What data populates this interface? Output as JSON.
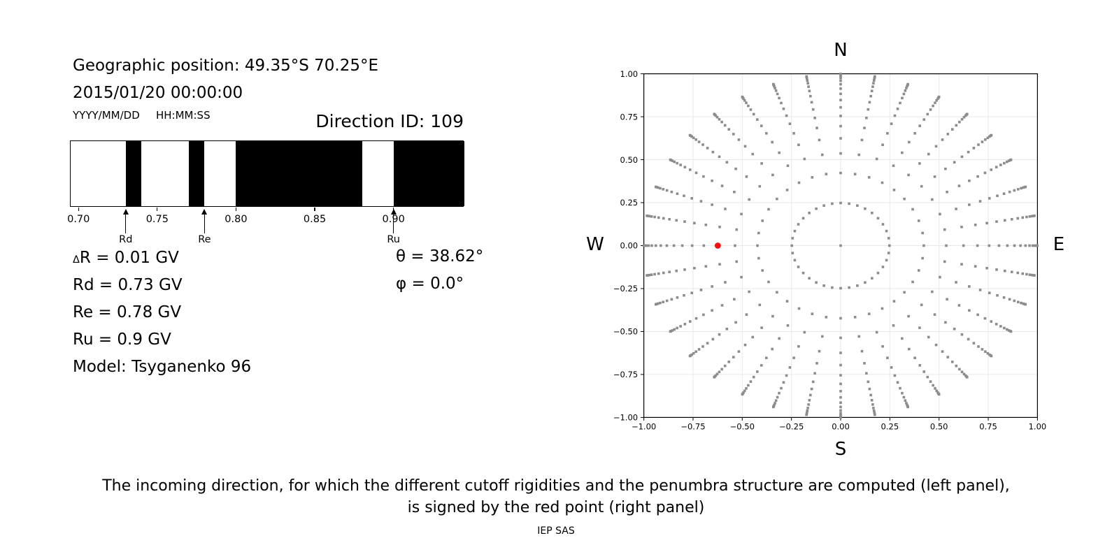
{
  "header": {
    "geo_position": "Geographic position: 49.35°S 70.25°E",
    "datetime": "2015/01/20 00:00:00",
    "date_format": "YYYY/MM/DD",
    "time_format": "HH:MM:SS",
    "direction_id": "Direction ID: 109"
  },
  "info": {
    "delta_symbol": "Δ",
    "delta_r": "R = 0.01 GV",
    "rd": "Rd = 0.73 GV",
    "re": "Re = 0.78 GV",
    "ru": "Ru = 0.9 GV",
    "model": "Model: Tsyganenko 96",
    "theta": "θ = 38.62°",
    "phi": "φ = 0.0°"
  },
  "caption": {
    "line1": "The incoming direction, for which the different cutoff rigidities and the penumbra structure are computed (left panel),",
    "line2": "is signed by the red point (right panel)",
    "credit": "IEP SAS"
  },
  "chart_data": [
    {
      "type": "bar",
      "subtype": "penumbra-band-chart",
      "title": "",
      "x_range": [
        0.695,
        0.945
      ],
      "x_ticks": [
        0.7,
        0.75,
        0.8,
        0.85,
        0.9
      ],
      "x_unit": "GV",
      "black_bands": [
        [
          0.73,
          0.74
        ],
        [
          0.77,
          0.78
        ],
        [
          0.8,
          0.88
        ],
        [
          0.9,
          0.945
        ]
      ],
      "band_color": "#000000",
      "background_color": "#ffffff",
      "arrows": [
        {
          "label": "Rd",
          "x": 0.73
        },
        {
          "label": "Re",
          "x": 0.78
        },
        {
          "label": "Ru",
          "x": 0.9
        }
      ],
      "values": {
        "delta_R_GV": 0.01,
        "Rd_GV": 0.73,
        "Re_GV": 0.78,
        "Ru_GV": 0.9,
        "theta_deg": 38.62,
        "phi_deg": 0.0,
        "direction_id": 109,
        "model": "Tsyganenko 96"
      }
    },
    {
      "type": "scatter",
      "subtype": "incoming-direction-grid",
      "x_range": [
        -1,
        1
      ],
      "y_range": [
        -1,
        1
      ],
      "ticks": [
        -1.0,
        -0.75,
        -0.5,
        -0.25,
        0.0,
        0.25,
        0.5,
        0.75,
        1.0
      ],
      "grid": true,
      "grid_color": "#e9e9e9",
      "compass": {
        "top": "N",
        "right": "E",
        "bottom": "S",
        "left": "W"
      },
      "dot_color": "#8c8c8c",
      "dot_size_px": 3.6,
      "azimuths_deg": {
        "start": 0,
        "step": 10,
        "count": 36
      },
      "ring_radii": [
        0.248,
        0.4227,
        0.5367,
        0.6242,
        0.6953,
        0.7546,
        0.8047,
        0.8472,
        0.8833,
        0.9138,
        0.9391,
        0.9596,
        0.9758,
        0.9877,
        0.9956,
        0.9995
      ],
      "ring_radius_rule": "sin(acos(1-(2k-1)/32)), k=1..16",
      "center_dot": true,
      "red_point": {
        "x": -0.6242,
        "y": 0.0,
        "color": "#ee1111",
        "radius_px": 4.4
      }
    }
  ]
}
